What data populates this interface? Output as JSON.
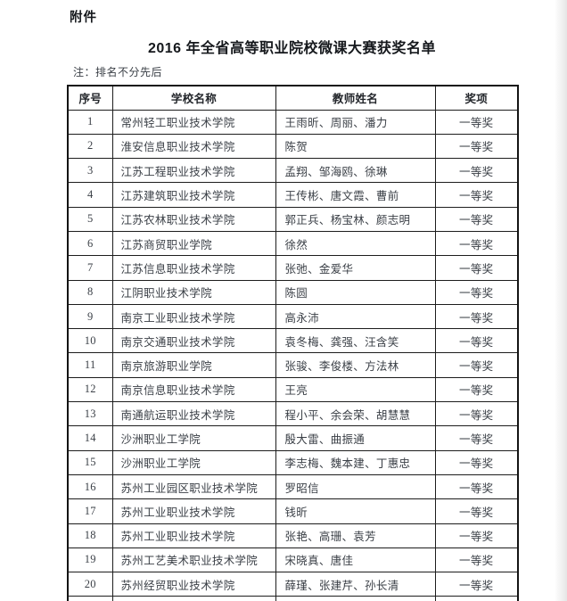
{
  "page": {
    "attachment_label": "附件",
    "title": "2016 年全省高等职业院校微课大赛获奖名单",
    "note": "注：排名不分先后"
  },
  "colors": {
    "text_body": "#3a3f46",
    "text_heading": "#15181c",
    "table_border": "#1d1d1d",
    "background": "#ffffff"
  },
  "table": {
    "headers": [
      "序号",
      "学校名称",
      "教师姓名",
      "奖项"
    ],
    "rows": [
      [
        "1",
        "常州轻工职业技术学院",
        "王雨昕、周丽、潘力",
        "一等奖"
      ],
      [
        "2",
        "淮安信息职业技术学院",
        "陈贺",
        "一等奖"
      ],
      [
        "3",
        "江苏工程职业技术学院",
        "孟翔、邹海鸥、徐琳",
        "一等奖"
      ],
      [
        "4",
        "江苏建筑职业技术学院",
        "王传彬、唐文霞、曹前",
        "一等奖"
      ],
      [
        "5",
        "江苏农林职业技术学院",
        "郭正兵、杨宝林、颜志明",
        "一等奖"
      ],
      [
        "6",
        "江苏商贸职业学院",
        "徐然",
        "一等奖"
      ],
      [
        "7",
        "江苏信息职业技术学院",
        "张弛、金爱华",
        "一等奖"
      ],
      [
        "8",
        "江阴职业技术学院",
        "陈圆",
        "一等奖"
      ],
      [
        "9",
        "南京工业职业技术学院",
        "高永沛",
        "一等奖"
      ],
      [
        "10",
        "南京交通职业技术学院",
        "袁冬梅、龚强、汪含笑",
        "一等奖"
      ],
      [
        "11",
        "南京旅游职业学院",
        "张骏、李俊楼、方法林",
        "一等奖"
      ],
      [
        "12",
        "南京信息职业技术学院",
        "王亮",
        "一等奖"
      ],
      [
        "13",
        "南通航运职业技术学院",
        "程小平、余会荣、胡慧慧",
        "一等奖"
      ],
      [
        "14",
        "沙洲职业工学院",
        "殷大雷、曲振通",
        "一等奖"
      ],
      [
        "15",
        "沙洲职业工学院",
        "李志梅、魏本建、丁惠忠",
        "一等奖"
      ],
      [
        "16",
        "苏州工业园区职业技术学院",
        "罗昭信",
        "一等奖"
      ],
      [
        "17",
        "苏州工业职业技术学院",
        "钱昕",
        "一等奖"
      ],
      [
        "18",
        "苏州工业职业技术学院",
        "张艳、高珊、袁芳",
        "一等奖"
      ],
      [
        "19",
        "苏州工艺美术职业技术学院",
        "宋晓真、唐佳",
        "一等奖"
      ],
      [
        "20",
        "苏州经贸职业技术学院",
        "薛瑾、张建芹、孙长清",
        "一等奖"
      ]
    ]
  }
}
